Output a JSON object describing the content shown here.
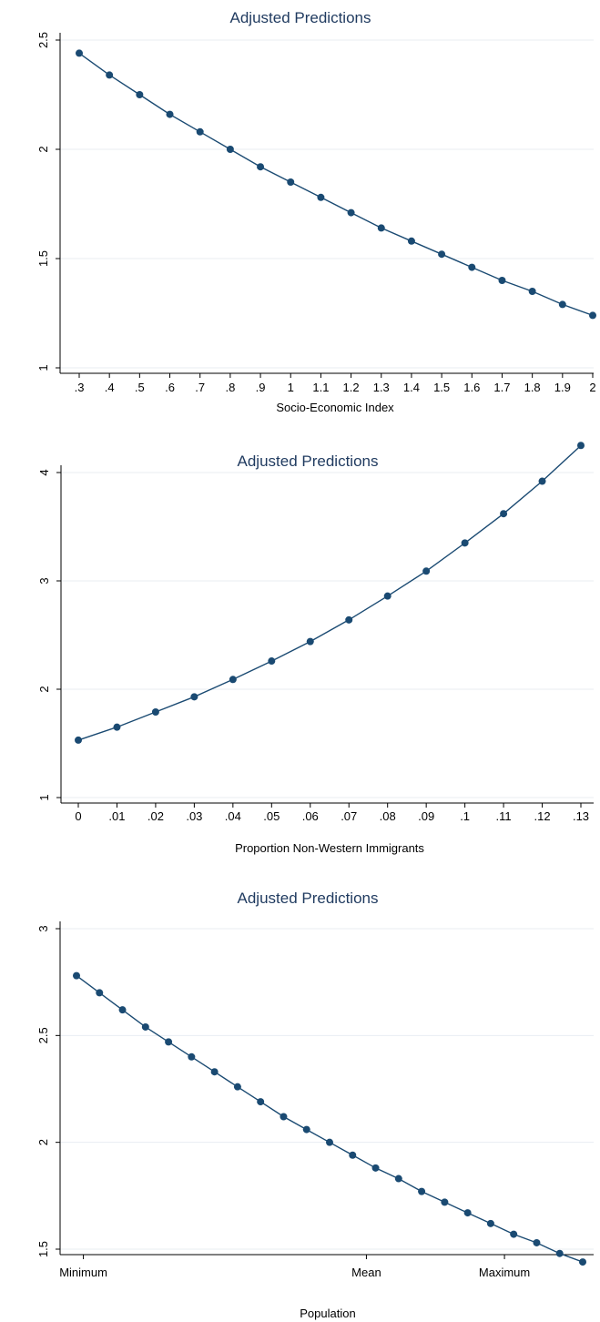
{
  "chart_data": [
    {
      "type": "line",
      "title": "Adjusted Predictions",
      "xlabel": "Socio-Economic Index",
      "ylabel": "",
      "grid": true,
      "ylim": [
        1,
        2.5
      ],
      "yticks": [
        1,
        1.5,
        2,
        2.5
      ],
      "ytick_labels": [
        "1",
        "1.5",
        "2",
        "2.5"
      ],
      "xlim": [
        0.3,
        2
      ],
      "xticks": [
        0.3,
        0.4,
        0.5,
        0.6,
        0.7,
        0.8,
        0.9,
        1,
        1.1,
        1.2,
        1.3,
        1.4,
        1.5,
        1.6,
        1.7,
        1.8,
        1.9,
        2
      ],
      "xtick_labels": [
        ".3",
        ".4",
        ".5",
        ".6",
        ".7",
        ".8",
        ".9",
        "1",
        "1.1",
        "1.2",
        "1.3",
        "1.4",
        "1.5",
        "1.6",
        "1.7",
        "1.8",
        "1.9",
        "2"
      ],
      "series": [
        {
          "x": [
            0.3,
            0.4,
            0.5,
            0.6,
            0.7,
            0.8,
            0.9,
            1,
            1.1,
            1.2,
            1.3,
            1.4,
            1.5,
            1.6,
            1.7,
            1.8,
            1.9,
            2
          ],
          "values": [
            2.44,
            2.34,
            2.25,
            2.16,
            2.08,
            2.0,
            1.92,
            1.85,
            1.78,
            1.71,
            1.64,
            1.58,
            1.52,
            1.46,
            1.4,
            1.35,
            1.29,
            1.24
          ]
        }
      ]
    },
    {
      "type": "line",
      "title": "Adjusted Predictions",
      "xlabel": "Proportion Non-Western Immigrants",
      "ylabel": "",
      "grid": true,
      "ylim": [
        1,
        4
      ],
      "yticks": [
        1,
        2,
        3,
        4
      ],
      "ytick_labels": [
        "1",
        "2",
        "3",
        "4"
      ],
      "xlim": [
        0,
        0.13
      ],
      "xticks": [
        0,
        0.01,
        0.02,
        0.03,
        0.04,
        0.05,
        0.06,
        0.07,
        0.08,
        0.09,
        0.1,
        0.11,
        0.12,
        0.13
      ],
      "xtick_labels": [
        "0",
        ".01",
        ".02",
        ".03",
        ".04",
        ".05",
        ".06",
        ".07",
        ".08",
        ".09",
        ".1",
        ".11",
        ".12",
        ".13"
      ],
      "series": [
        {
          "x": [
            0,
            0.01,
            0.02,
            0.03,
            0.04,
            0.05,
            0.06,
            0.07,
            0.08,
            0.09,
            0.1,
            0.11,
            0.12,
            0.13
          ],
          "values": [
            1.53,
            1.65,
            1.79,
            1.93,
            2.09,
            2.26,
            2.44,
            2.64,
            2.86,
            3.09,
            3.35,
            3.62,
            3.92,
            4.25
          ]
        }
      ]
    },
    {
      "type": "line",
      "title": "Adjusted Predictions",
      "xlabel": "Population",
      "ylabel": "",
      "grid": true,
      "ylim": [
        1.5,
        3
      ],
      "yticks": [
        1.5,
        2,
        2.5,
        3
      ],
      "ytick_labels": [
        "1.5",
        "2",
        "2.5",
        "3"
      ],
      "xlim": [
        0,
        22
      ],
      "xticks": [
        0.3,
        12.6,
        18.6
      ],
      "xtick_labels": [
        "Minimum",
        "Mean",
        "Maximum"
      ],
      "series": [
        {
          "x": [
            0,
            1,
            2,
            3,
            4,
            5,
            6,
            7,
            8,
            9,
            10,
            11,
            12,
            13,
            14,
            15,
            16,
            17,
            18,
            19,
            20,
            21,
            22
          ],
          "values": [
            2.78,
            2.7,
            2.62,
            2.54,
            2.47,
            2.4,
            2.33,
            2.26,
            2.19,
            2.12,
            2.06,
            2.0,
            1.94,
            1.88,
            1.83,
            1.77,
            1.72,
            1.67,
            1.62,
            1.57,
            1.53,
            1.48,
            1.44
          ]
        }
      ]
    }
  ]
}
